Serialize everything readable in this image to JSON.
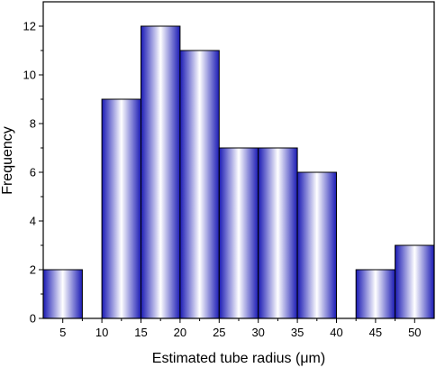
{
  "chart_data": {
    "type": "bar",
    "xlabel": "Estimated tube radius (μm)",
    "ylabel": "Frequency",
    "x_ticks": [
      5,
      10,
      15,
      20,
      25,
      30,
      35,
      40,
      45,
      50
    ],
    "y_ticks": [
      0,
      2,
      4,
      6,
      8,
      10,
      12
    ],
    "xlim": [
      2.5,
      52.5
    ],
    "ylim": [
      0,
      13
    ],
    "bins": [
      {
        "start": 2.5,
        "end": 7.5,
        "value": 2
      },
      {
        "start": 10,
        "end": 15,
        "value": 9
      },
      {
        "start": 15,
        "end": 20,
        "value": 12
      },
      {
        "start": 20,
        "end": 25,
        "value": 11
      },
      {
        "start": 25,
        "end": 30,
        "value": 7
      },
      {
        "start": 30,
        "end": 35,
        "value": 7
      },
      {
        "start": 35,
        "end": 40,
        "value": 6
      },
      {
        "start": 42.5,
        "end": 47.5,
        "value": 2
      },
      {
        "start": 47.5,
        "end": 52.5,
        "value": 3
      }
    ],
    "colors": {
      "bar_edge": "#1a1ab4",
      "bar_center": "#ffffff",
      "outline": "#000000"
    },
    "grid": false
  }
}
